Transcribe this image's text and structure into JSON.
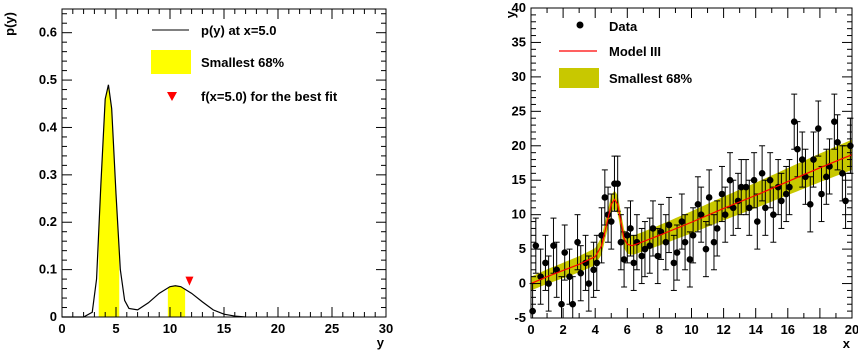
{
  "chart_data": [
    {
      "type": "line",
      "xlabel": "y",
      "ylabel": "p(y)",
      "xlim": [
        0,
        30
      ],
      "ylim": [
        0,
        0.65
      ],
      "x_ticks": [
        0,
        5,
        10,
        15,
        20,
        25,
        30
      ],
      "y_ticks": [
        0,
        0.1,
        0.2,
        0.3,
        0.4,
        0.5,
        0.6
      ],
      "legend_position": "top-right",
      "series": [
        {
          "name": "p(y) at x=5.0",
          "color": "#000000",
          "x": [
            0,
            2,
            2.8,
            3.2,
            3.6,
            4.0,
            4.3,
            4.6,
            5.0,
            5.4,
            5.8,
            6.2,
            7.0,
            8.0,
            9.0,
            10.0,
            10.5,
            11.0,
            12.0,
            13.0,
            14.0,
            15.0,
            16.0,
            17.0
          ],
          "y": [
            0,
            0,
            0.01,
            0.08,
            0.28,
            0.46,
            0.49,
            0.44,
            0.26,
            0.1,
            0.035,
            0.018,
            0.015,
            0.03,
            0.05,
            0.064,
            0.066,
            0.064,
            0.05,
            0.032,
            0.015,
            0.006,
            0.002,
            0
          ]
        }
      ],
      "bands": [
        {
          "name": "Smallest 68%",
          "color": "#ffff00",
          "ranges": [
            [
              3.4,
              5.3
            ],
            [
              9.8,
              11.4
            ]
          ]
        }
      ],
      "markers": [
        {
          "name": "f(x=5.0) for the best fit",
          "color": "#ff0000",
          "x": 11.8,
          "y": 0.06
        }
      ]
    },
    {
      "type": "scatter",
      "xlabel": "x",
      "ylabel": "y",
      "xlim": [
        0,
        20
      ],
      "ylim": [
        -5,
        40
      ],
      "x_ticks": [
        0,
        2,
        4,
        6,
        8,
        10,
        12,
        14,
        16,
        18,
        20
      ],
      "y_ticks": [
        -5,
        0,
        5,
        10,
        15,
        20,
        25,
        30,
        35,
        40
      ],
      "legend_position": "top-left",
      "series": [
        {
          "name": "Data",
          "color": "#000000",
          "error": 4,
          "x": [
            0.1,
            0.3,
            0.6,
            0.9,
            1.1,
            1.4,
            1.6,
            1.9,
            2.1,
            2.4,
            2.6,
            2.9,
            3.1,
            3.4,
            3.6,
            3.9,
            4.1,
            4.4,
            4.6,
            4.8,
            5.0,
            5.2,
            5.4,
            5.6,
            5.8,
            6.0,
            6.2,
            6.4,
            6.6,
            6.9,
            7.1,
            7.4,
            7.6,
            7.9,
            8.1,
            8.4,
            8.6,
            8.9,
            9.1,
            9.4,
            9.6,
            9.9,
            10.1,
            10.4,
            10.6,
            10.9,
            11.1,
            11.4,
            11.6,
            11.9,
            12.1,
            12.4,
            12.6,
            12.9,
            13.1,
            13.4,
            13.6,
            13.9,
            14.1,
            14.4,
            14.6,
            14.9,
            15.1,
            15.4,
            15.6,
            15.9,
            16.1,
            16.4,
            16.6,
            16.9,
            17.1,
            17.4,
            17.6,
            17.9,
            18.1,
            18.4,
            18.6,
            18.9,
            19.1,
            19.4,
            19.6,
            19.9
          ],
          "y": [
            -4,
            5.5,
            1,
            3,
            0,
            5.5,
            2,
            -3,
            4.5,
            1,
            -3,
            6,
            1.5,
            3,
            0,
            2,
            3,
            7,
            12.5,
            10,
            9,
            14.5,
            14.5,
            6,
            3.5,
            7,
            8,
            3,
            6,
            4,
            5,
            5.5,
            8,
            4,
            7.5,
            6,
            8.5,
            3,
            4.5,
            9,
            6,
            3.5,
            7,
            11.5,
            10,
            5,
            12.5,
            6,
            8,
            13,
            10,
            15,
            11,
            12,
            14,
            14,
            11,
            15,
            9,
            16,
            11,
            15,
            10,
            14,
            12,
            13,
            14,
            23.5,
            19.5,
            18,
            15.5,
            11.5,
            18,
            22.5,
            13,
            15.5,
            17,
            23.5,
            20.5,
            16,
            12,
            20
          ]
        },
        {
          "name": "Model III",
          "color": "#ff0000",
          "x": [
            0,
            1,
            2,
            3,
            4,
            4.4,
            4.7,
            5.0,
            5.2,
            5.4,
            5.6,
            5.8,
            6.0,
            6.3,
            7,
            8,
            10,
            12,
            14,
            16,
            18,
            20
          ],
          "y": [
            0,
            1,
            1.9,
            2.8,
            3.9,
            5.5,
            8.5,
            11.5,
            12.2,
            11.5,
            9,
            6.5,
            5.7,
            5.5,
            6.1,
            7.0,
            8.9,
            10.9,
            12.8,
            14.8,
            16.8,
            18.7
          ]
        }
      ],
      "bands": [
        {
          "name": "Smallest 68%",
          "color": "#c8c800"
        }
      ]
    }
  ],
  "legend1": {
    "line_label": "p(y) at x=5.0",
    "band_label": "Smallest 68%",
    "marker_label": "f(x=5.0) for the best fit"
  },
  "legend2": {
    "data_label": "Data",
    "model_label": "Model III",
    "band_label": "Smallest 68%"
  }
}
